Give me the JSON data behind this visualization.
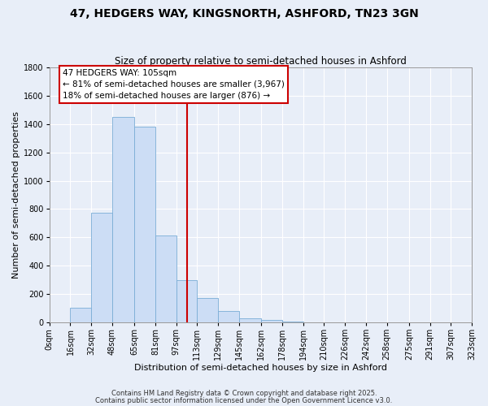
{
  "title": "47, HEDGERS WAY, KINGSNORTH, ASHFORD, TN23 3GN",
  "subtitle": "Size of property relative to semi-detached houses in Ashford",
  "xlabel": "Distribution of semi-detached houses by size in Ashford",
  "ylabel": "Number of semi-detached properties",
  "bar_color": "#ccddf5",
  "bar_edge_color": "#7aadd6",
  "background_color": "#e8eef8",
  "grid_color": "#ffffff",
  "bin_edges": [
    0,
    16,
    32,
    48,
    65,
    81,
    97,
    113,
    129,
    145,
    162,
    178,
    194,
    210,
    226,
    242,
    258,
    275,
    291,
    307,
    323
  ],
  "bin_labels": [
    "0sqm",
    "16sqm",
    "32sqm",
    "48sqm",
    "65sqm",
    "81sqm",
    "97sqm",
    "113sqm",
    "129sqm",
    "145sqm",
    "162sqm",
    "178sqm",
    "194sqm",
    "210sqm",
    "226sqm",
    "242sqm",
    "258sqm",
    "275sqm",
    "291sqm",
    "307sqm",
    "323sqm"
  ],
  "counts": [
    2,
    100,
    775,
    1450,
    1380,
    615,
    300,
    170,
    82,
    28,
    14,
    3,
    0,
    0,
    0,
    0,
    0,
    0,
    1,
    0
  ],
  "vline_x": 105,
  "vline_color": "#cc0000",
  "annotation_title": "47 HEDGERS WAY: 105sqm",
  "annotation_line1": "← 81% of semi-detached houses are smaller (3,967)",
  "annotation_line2": "18% of semi-detached houses are larger (876) →",
  "annotation_box_color": "#ffffff",
  "annotation_box_edge": "#cc0000",
  "ylim": [
    0,
    1800
  ],
  "yticks": [
    0,
    200,
    400,
    600,
    800,
    1000,
    1200,
    1400,
    1600,
    1800
  ],
  "footer1": "Contains HM Land Registry data © Crown copyright and database right 2025.",
  "footer2": "Contains public sector information licensed under the Open Government Licence v3.0.",
  "title_fontsize": 10,
  "subtitle_fontsize": 8.5,
  "axis_label_fontsize": 8,
  "tick_fontsize": 7,
  "annotation_fontsize": 7.5,
  "footer_fontsize": 6
}
